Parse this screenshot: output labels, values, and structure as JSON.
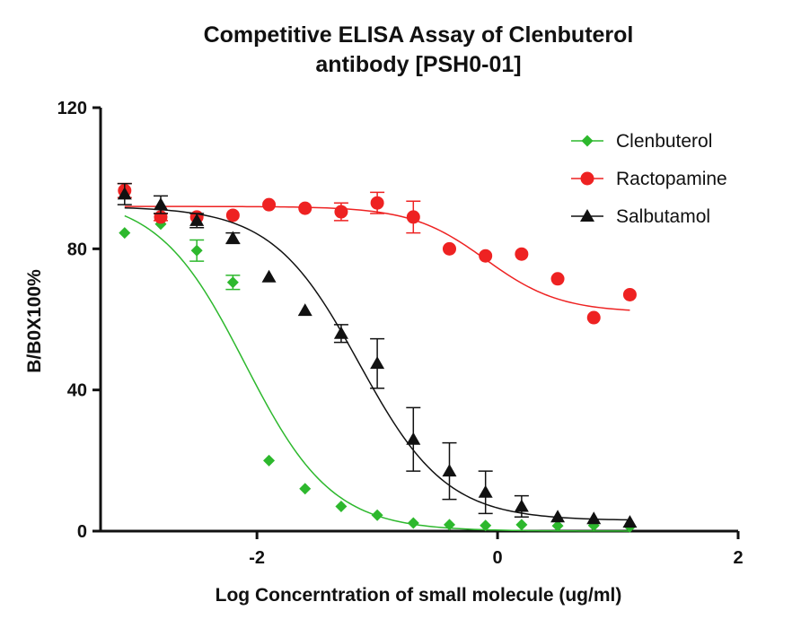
{
  "chart_data": {
    "type": "scatter",
    "title_line1": "Competitive ELISA Assay of  Clenbuterol",
    "title_line2": "antibody [PSH0-01]",
    "xlabel": "Log Concerntration of small molecule (ug/ml)",
    "ylabel": "B/B0X100%",
    "xlim": [
      -3.3,
      2
    ],
    "ylim": [
      0,
      120
    ],
    "xticks": [
      -2,
      0,
      2
    ],
    "xtick_labels": [
      "-2",
      "0",
      "2"
    ],
    "yticks": [
      0,
      40,
      80,
      120
    ],
    "ytick_labels": [
      "0",
      "40",
      "80",
      "120"
    ],
    "legend_position": "top-right",
    "series": [
      {
        "name": "Clenbuterol",
        "color": "#2db82d",
        "marker": "diamond",
        "x": [
          -3.1,
          -2.8,
          -2.5,
          -2.2,
          -1.9,
          -1.6,
          -1.3,
          -1.0,
          -0.7,
          -0.4,
          -0.1,
          0.2,
          0.5,
          0.8,
          1.1
        ],
        "y": [
          84.5,
          87,
          79.5,
          70.5,
          20,
          12,
          7,
          4.5,
          2.3,
          1.8,
          1.6,
          1.8,
          1.5,
          1.6,
          1.2
        ],
        "err": [
          0,
          0,
          3,
          2,
          0,
          0,
          0,
          0,
          0,
          0,
          0,
          0,
          0,
          0,
          0
        ],
        "fit": {
          "top": 95,
          "bottom": 0,
          "logec50": -2.1,
          "hill": -1.2
        }
      },
      {
        "name": "Ractopamine",
        "color": "#ee2222",
        "marker": "circle",
        "x": [
          -3.1,
          -2.8,
          -2.5,
          -2.2,
          -1.9,
          -1.6,
          -1.3,
          -1.0,
          -0.7,
          -0.4,
          -0.1,
          0.2,
          0.5,
          0.8,
          1.1
        ],
        "y": [
          96.5,
          89,
          89,
          89.5,
          92.5,
          91.5,
          90.5,
          93,
          89,
          80,
          78,
          78.5,
          71.5,
          60.5,
          67
        ],
        "err": [
          2,
          1,
          0,
          0,
          0,
          0,
          2.5,
          3,
          4.5,
          0,
          0,
          0,
          0,
          0,
          0
        ],
        "fit": {
          "top": 92,
          "bottom": 62,
          "logec50": -0.1,
          "hill": -1.4
        }
      },
      {
        "name": "Salbutamol",
        "color": "#111111",
        "marker": "triangle",
        "x": [
          -3.1,
          -2.8,
          -2.5,
          -2.2,
          -1.9,
          -1.6,
          -1.3,
          -1.0,
          -0.7,
          -0.4,
          -0.1,
          0.2,
          0.5,
          0.8,
          1.1
        ],
        "y": [
          95.5,
          92.5,
          88,
          83,
          72,
          62.5,
          56,
          47.5,
          26,
          17,
          11,
          7,
          4,
          3.5,
          2.5
        ],
        "err": [
          3,
          2.5,
          2,
          1.5,
          0,
          0,
          2.5,
          7,
          9,
          8,
          6,
          3,
          0,
          0,
          0
        ],
        "fit": {
          "top": 92,
          "bottom": 3,
          "logec50": -1.15,
          "hill": -1.2
        }
      }
    ]
  }
}
